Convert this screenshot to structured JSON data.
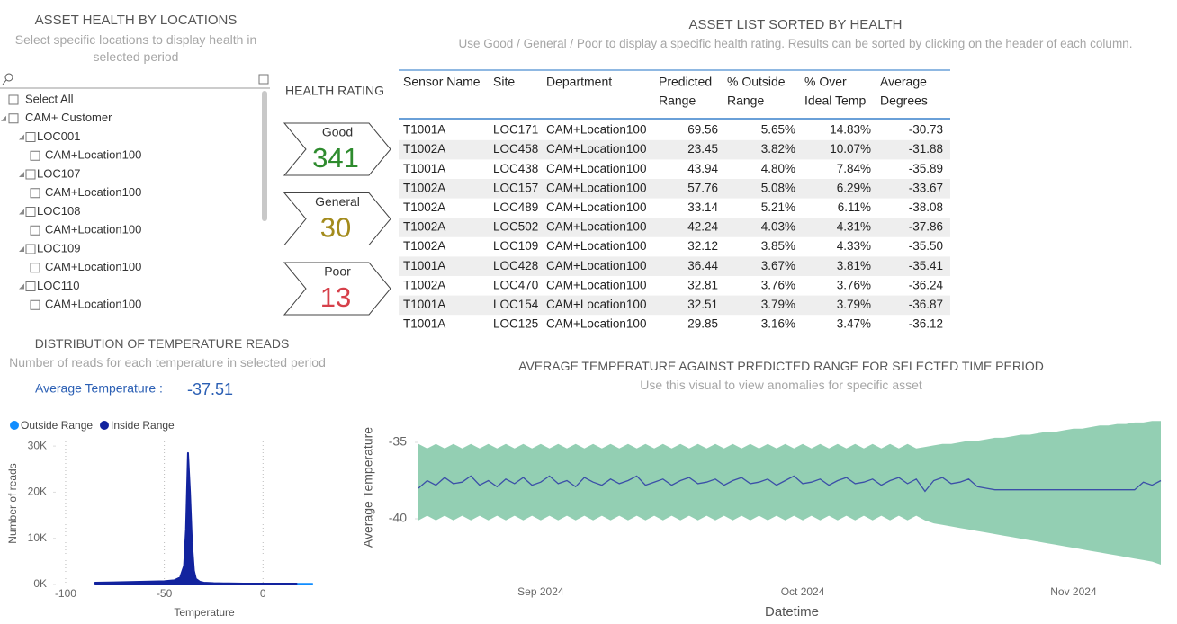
{
  "slicer": {
    "title": "ASSET HEALTH BY LOCATIONS",
    "subtitle": "Select specific locations to display health in selected period",
    "select_all": "Select All",
    "tree": {
      "label": "CAM+ Customer",
      "children": [
        {
          "label": "LOC001",
          "children": [
            "CAM+Location100"
          ]
        },
        {
          "label": "LOC107",
          "children": [
            "CAM+Location100"
          ]
        },
        {
          "label": "LOC108",
          "children": [
            "CAM+Location100"
          ]
        },
        {
          "label": "LOC109",
          "children": [
            "CAM+Location100"
          ]
        },
        {
          "label": "LOC110",
          "children": [
            "CAM+Location100"
          ]
        }
      ]
    }
  },
  "health": {
    "title": "HEALTH RATING",
    "cards": [
      {
        "label": "Good",
        "value": 341,
        "color": "#2e8b2e"
      },
      {
        "label": "General",
        "value": 30,
        "color": "#a38b1c"
      },
      {
        "label": "Poor",
        "value": 13,
        "color": "#d6404a"
      }
    ]
  },
  "table": {
    "title": "ASSET LIST SORTED BY HEALTH",
    "subtitle": "Use Good / General / Poor  to display a specific health rating. Results can be sorted by clicking on the header of each column.",
    "columns": [
      [
        "Sensor Name"
      ],
      [
        "Site"
      ],
      [
        "Department"
      ],
      [
        "Predicted",
        "Range"
      ],
      [
        "% Outside",
        "Range"
      ],
      [
        "% Over",
        "Ideal Temp"
      ],
      [
        "Average",
        "Degrees"
      ]
    ],
    "rows": [
      [
        "T1001A",
        "LOC171",
        "CAM+Location100",
        "69.56",
        "5.65%",
        "14.83%",
        "-30.73"
      ],
      [
        "T1002A",
        "LOC458",
        "CAM+Location100",
        "23.45",
        "3.82%",
        "10.07%",
        "-31.88"
      ],
      [
        "T1001A",
        "LOC438",
        "CAM+Location100",
        "43.94",
        "4.80%",
        "7.84%",
        "-35.89"
      ],
      [
        "T1002A",
        "LOC157",
        "CAM+Location100",
        "57.76",
        "5.08%",
        "6.29%",
        "-33.67"
      ],
      [
        "T1002A",
        "LOC489",
        "CAM+Location100",
        "33.14",
        "5.21%",
        "6.11%",
        "-38.08"
      ],
      [
        "T1002A",
        "LOC502",
        "CAM+Location100",
        "42.24",
        "4.03%",
        "4.31%",
        "-37.86"
      ],
      [
        "T1002A",
        "LOC109",
        "CAM+Location100",
        "32.12",
        "3.85%",
        "4.33%",
        "-35.50"
      ],
      [
        "T1001A",
        "LOC428",
        "CAM+Location100",
        "36.44",
        "3.67%",
        "3.81%",
        "-35.41"
      ],
      [
        "T1002A",
        "LOC470",
        "CAM+Location100",
        "32.81",
        "3.76%",
        "3.76%",
        "-36.24"
      ],
      [
        "T1001A",
        "LOC154",
        "CAM+Location100",
        "32.51",
        "3.79%",
        "3.79%",
        "-36.87"
      ],
      [
        "T1001A",
        "LOC125",
        "CAM+Location100",
        "29.85",
        "3.16%",
        "3.47%",
        "-36.12"
      ]
    ]
  },
  "chart_data": [
    {
      "type": "area",
      "title": "DISTRIBUTION OF TEMPERATURE READS",
      "subtitle": "Number of reads for each temperature in selected period",
      "annotation": {
        "label": "Average Temperature :",
        "value": -37.51
      },
      "x_label": "Temperature",
      "y_label": "Number of reads",
      "x": [
        -85,
        -70,
        -60,
        -50,
        -45,
        -42,
        -40,
        -39,
        -38,
        -37,
        -36,
        -35,
        -34,
        -32,
        -30,
        -25,
        -20,
        -10,
        0,
        10,
        17,
        18,
        20,
        25
      ],
      "series": [
        {
          "name": "Outside Range",
          "color": "#118dff",
          "values": [
            null,
            null,
            null,
            null,
            null,
            null,
            null,
            null,
            null,
            null,
            null,
            null,
            null,
            null,
            null,
            null,
            null,
            null,
            null,
            null,
            150,
            150,
            150,
            150
          ]
        },
        {
          "name": "Inside Range",
          "color": "#12239e",
          "values": [
            400,
            500,
            600,
            700,
            900,
            1500,
            4000,
            12000,
            28500,
            20000,
            9000,
            3000,
            1200,
            600,
            400,
            300,
            250,
            200,
            200,
            200,
            200,
            null,
            null,
            null
          ]
        }
      ],
      "xlim": [
        -105,
        40
      ],
      "ylim": [
        0,
        31000
      ],
      "xticks": [
        -100,
        -50,
        0
      ],
      "yticks": [
        {
          "value": 0,
          "label": "0K"
        },
        {
          "value": 10000,
          "label": "10K"
        },
        {
          "value": 20000,
          "label": "20K"
        },
        {
          "value": 30000,
          "label": "30K"
        }
      ],
      "grid": "x",
      "legend": "top-left"
    },
    {
      "type": "line",
      "title": "AVERAGE TEMPERATURE AGAINST PREDICTED RANGE FOR SELECTED TIME PERIOD",
      "subtitle": "Use this visual to view anomalies for specific asset",
      "x_label": "Datetime",
      "y_label": "Average Temperature",
      "categories": [
        null,
        null,
        null,
        null,
        null,
        null,
        null,
        null,
        null,
        null,
        null,
        null,
        null,
        null,
        "Sep 2024",
        null,
        null,
        null,
        null,
        null,
        null,
        null,
        null,
        null,
        null,
        null,
        null,
        null,
        null,
        null,
        null,
        null,
        null,
        null,
        null,
        null,
        null,
        null,
        null,
        null,
        null,
        null,
        null,
        null,
        "Oct 2024",
        null,
        null,
        null,
        null,
        null,
        null,
        null,
        null,
        null,
        null,
        null,
        null,
        null,
        null,
        null,
        null,
        null,
        null,
        null,
        null,
        null,
        null,
        null,
        null,
        null,
        null,
        null,
        null,
        null,
        null,
        "Nov 2024",
        null,
        null,
        null,
        null,
        null,
        null,
        null,
        null,
        null,
        null
      ],
      "values": [
        -38.0,
        -37.5,
        -37.8,
        -37.3,
        -37.7,
        -37.6,
        -37.2,
        -37.8,
        -37.5,
        -37.9,
        -37.4,
        -37.7,
        -37.3,
        -37.8,
        -37.6,
        -37.2,
        -37.7,
        -37.5,
        -37.9,
        -37.3,
        -37.6,
        -37.8,
        -37.4,
        -37.7,
        -37.5,
        -37.2,
        -37.8,
        -37.6,
        -37.4,
        -37.8,
        -37.5,
        -37.3,
        -37.7,
        -37.6,
        -37.4,
        -37.8,
        -37.5,
        -37.3,
        -37.7,
        -37.6,
        -37.4,
        -37.8,
        -37.5,
        -37.2,
        -37.7,
        -37.6,
        -37.4,
        -37.8,
        -37.5,
        -37.3,
        -37.7,
        -37.6,
        -37.4,
        -37.8,
        -37.5,
        -37.3,
        -37.7,
        -37.4,
        -38.2,
        -37.5,
        -37.3,
        -37.7,
        -37.6,
        -37.4,
        -37.9,
        -38.0,
        -38.1,
        -38.1,
        -38.1,
        -38.1,
        -38.1,
        -38.1,
        -38.1,
        -38.1,
        -38.1,
        -38.1,
        -38.1,
        -38.1,
        -38.1,
        -38.1,
        -38.1,
        -38.1,
        -38.1,
        -37.6,
        -37.8,
        -37.5
      ],
      "color": "#3b4fa8",
      "range_high": [
        -35.1,
        -35.4,
        -35.1,
        -35.4,
        -35.1,
        -35.4,
        -35.1,
        -35.4,
        -35.1,
        -35.4,
        -35.1,
        -35.4,
        -35.1,
        -35.4,
        -35.1,
        -35.4,
        -35.1,
        -35.4,
        -35.1,
        -35.4,
        -35.1,
        -35.4,
        -35.1,
        -35.4,
        -35.1,
        -35.4,
        -35.1,
        -35.4,
        -35.1,
        -35.4,
        -35.1,
        -35.4,
        -35.1,
        -35.4,
        -35.1,
        -35.4,
        -35.1,
        -35.4,
        -35.1,
        -35.4,
        -35.1,
        -35.4,
        -35.1,
        -35.4,
        -35.1,
        -35.4,
        -35.1,
        -35.4,
        -35.1,
        -35.4,
        -35.1,
        -35.4,
        -35.1,
        -35.4,
        -35.1,
        -35.4,
        -35.1,
        -35.4,
        -35.3,
        -35.2,
        -35.1,
        -35.1,
        -35.0,
        -34.9,
        -34.9,
        -34.8,
        -34.7,
        -34.7,
        -34.6,
        -34.5,
        -34.5,
        -34.4,
        -34.3,
        -34.3,
        -34.2,
        -34.1,
        -34.1,
        -34.0,
        -33.9,
        -33.9,
        -33.8,
        -33.8,
        -33.7,
        -33.7,
        -33.6,
        -33.6
      ],
      "range_low": [
        -40.1,
        -39.8,
        -40.1,
        -39.8,
        -40.1,
        -39.8,
        -40.1,
        -39.8,
        -40.1,
        -39.8,
        -40.1,
        -39.8,
        -40.1,
        -39.8,
        -40.1,
        -39.8,
        -40.1,
        -39.8,
        -40.1,
        -39.8,
        -40.1,
        -39.8,
        -40.1,
        -39.8,
        -40.1,
        -39.8,
        -40.1,
        -39.8,
        -40.1,
        -39.8,
        -40.1,
        -39.8,
        -40.1,
        -39.8,
        -40.1,
        -39.8,
        -40.1,
        -39.8,
        -40.1,
        -39.8,
        -40.1,
        -39.8,
        -40.1,
        -39.8,
        -40.1,
        -39.8,
        -40.1,
        -39.8,
        -40.1,
        -39.8,
        -40.1,
        -39.8,
        -40.1,
        -39.8,
        -40.1,
        -39.8,
        -40.1,
        -39.8,
        -40.1,
        -40.3,
        -40.4,
        -40.5,
        -40.6,
        -40.7,
        -40.8,
        -40.9,
        -41.0,
        -41.1,
        -41.2,
        -41.3,
        -41.4,
        -41.5,
        -41.6,
        -41.7,
        -41.8,
        -41.9,
        -42.0,
        -42.1,
        -42.2,
        -42.3,
        -42.4,
        -42.5,
        -42.6,
        -42.7,
        -42.8,
        -43.0
      ],
      "range_color": "#93cfb3",
      "ylim": [
        -43.2,
        -33.4
      ],
      "yticks": [
        -40,
        -35
      ]
    }
  ]
}
